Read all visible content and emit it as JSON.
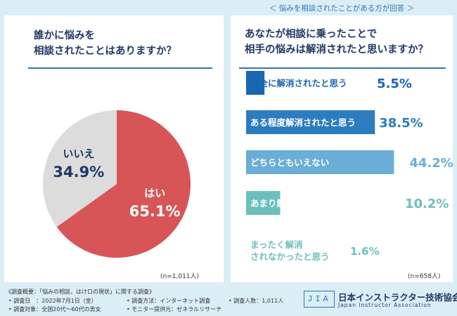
{
  "left": {
    "question": "誰かに悩みを\n相談されたことはありますか？",
    "n_note": "(n=1,011人)"
  },
  "right": {
    "header": "＜ 悩みを相談されたことがある方が回答 ＞",
    "question": "あなたが相談に乗ったことで\n相手の悩みは解消されたと思いますか？",
    "n_note": "(n=658人)"
  },
  "footer": {
    "line1": "《調査概要：「悩みの相談、はけ口の現状」に関する調査》",
    "date": "• 調査日　：2022年7月1日（金）",
    "method": "• 調査方法：インターネット調査",
    "count": "• 調査人数：1,011人",
    "target": "• 調査対象：全国20代〜60代の男女",
    "provider": "• モニター提供元：ゼネラルリサーチ"
  },
  "logo": {
    "mark": "JIA",
    "name": "日本インストラクター技術協会",
    "sub": "Japan Instructor Association"
  },
  "colors": {
    "pie_yes": "#d85557",
    "pie_no": "#dcdcdc",
    "bar1": "#1a66b3",
    "bar2": "#2c7cc0",
    "bar3": "#6aaed8",
    "bar4": "#6cbfbd",
    "bar5": "#ffffff",
    "text_dark": "#1f3864",
    "text_teal": "#6cbfbd"
  },
  "chart_data": [
    {
      "type": "pie",
      "slices": [
        {
          "label": "はい",
          "value": 65.1,
          "display": "65.1%"
        },
        {
          "label": "いいえ",
          "value": 34.9,
          "display": "34.9%"
        }
      ]
    },
    {
      "type": "bar",
      "orientation": "horizontal",
      "categories": [
        "完全に解消されたと思う",
        "ある程度解消されたと思う",
        "どちらともいえない",
        "あまり解消されなかったと思う",
        "まったく解消\nされなかったと思う"
      ],
      "values": [
        5.5,
        38.5,
        44.2,
        10.2,
        1.6
      ],
      "value_labels": [
        "5.5%",
        "38.5%",
        "44.2%",
        "10.2%",
        "1.6%"
      ]
    }
  ]
}
